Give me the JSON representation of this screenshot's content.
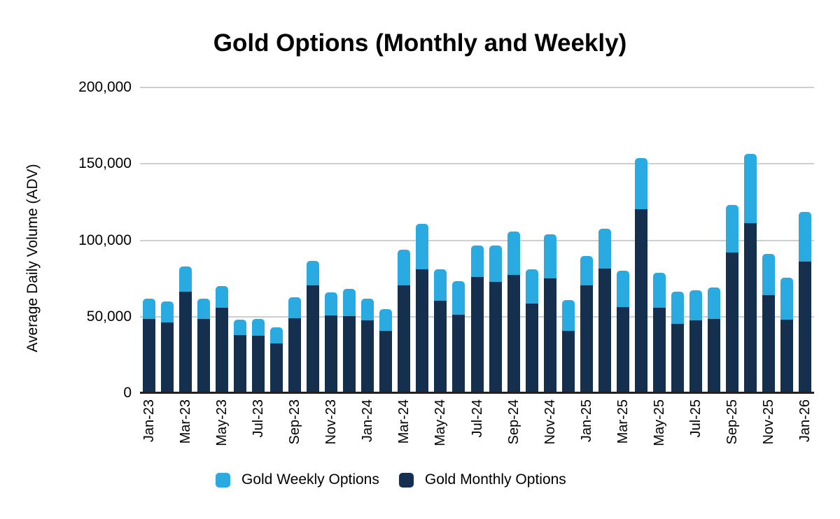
{
  "title": "Gold Options (Monthly and Weekly)",
  "y_axis": {
    "title": "Average Daily Volume (ADV)",
    "ticks": [
      {
        "label": "200,000",
        "value": 200000
      },
      {
        "label": "150,000",
        "value": 150000
      },
      {
        "label": "100,000",
        "value": 100000
      },
      {
        "label": "50,000",
        "value": 50000
      },
      {
        "label": "0",
        "value": 0
      }
    ]
  },
  "legend": {
    "position": "bottom",
    "items": [
      {
        "label": "Gold Weekly Options",
        "color": "#29ABE2"
      },
      {
        "label": "Gold Monthly Options",
        "color": "#14304E"
      }
    ]
  },
  "colors": {
    "weekly": "#29ABE2",
    "monthly": "#14304E",
    "gridline": "#CFCFCF",
    "axis_line": "#212121",
    "text": "#000000",
    "background": "#FFFFFF"
  },
  "chart_data": {
    "type": "bar",
    "stacked": true,
    "title": "Gold Options (Monthly and Weekly)",
    "xlabel": "",
    "ylabel": "Average Daily Volume (ADV)",
    "ylim": [
      0,
      200000
    ],
    "grid": "horizontal",
    "legend_position": "bottom",
    "x_tick_every": 2,
    "x": [
      "Jan-23",
      "Feb-23",
      "Mar-23",
      "Apr-23",
      "May-23",
      "Jun-23",
      "Jul-23",
      "Aug-23",
      "Sep-23",
      "Oct-23",
      "Nov-23",
      "Dec-23",
      "Jan-24",
      "Feb-24",
      "Mar-24",
      "Apr-24",
      "May-24",
      "Jun-24",
      "Jul-24",
      "Aug-24",
      "Sep-24",
      "Oct-24",
      "Nov-24",
      "Dec-24",
      "Jan-25",
      "Feb-25",
      "Mar-25",
      "Apr-25",
      "May-25",
      "Jun-25",
      "Jul-25",
      "Aug-25",
      "Sep-25",
      "Oct-25",
      "Nov-25",
      "Dec-25",
      "Jan-26"
    ],
    "series": [
      {
        "name": "Gold Monthly Options",
        "color": "#14304E",
        "values": [
          47500,
          45500,
          65500,
          47500,
          55000,
          37000,
          36500,
          31500,
          48000,
          69500,
          50000,
          49500,
          46500,
          40000,
          69500,
          80000,
          59500,
          50500,
          75000,
          72000,
          76500,
          57500,
          74000,
          40000,
          69500,
          80500,
          55500,
          119500,
          55000,
          44500,
          46500,
          47500,
          91000,
          110500,
          63000,
          47000,
          85000
        ]
      },
      {
        "name": "Gold Weekly Options",
        "color": "#29ABE2",
        "values": [
          13500,
          13500,
          16500,
          13500,
          14000,
          10000,
          11000,
          10500,
          14000,
          16000,
          15000,
          18000,
          14500,
          14000,
          23500,
          30000,
          20500,
          22000,
          20500,
          23500,
          28500,
          22500,
          29000,
          20000,
          19500,
          26000,
          23500,
          33500,
          23000,
          21000,
          20000,
          20500,
          31000,
          45000,
          27000,
          27500,
          32500
        ]
      }
    ]
  }
}
